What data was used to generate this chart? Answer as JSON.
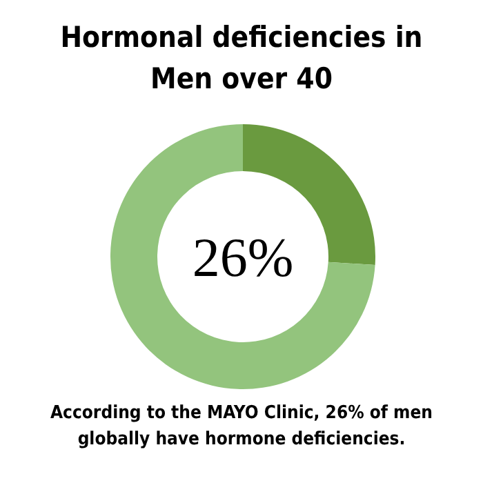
{
  "chart_data": {
    "type": "donut",
    "title": "Hormonal deficiencies in Men over 40",
    "categories": [
      null,
      null
    ],
    "values": [
      26,
      74
    ],
    "colors": [
      "#6a9a3f",
      "#93c47d"
    ],
    "annotations": [
      "26%",
      "According to the MAYO Clinic, 26% of men globally have hormone deficiencies."
    ]
  }
}
